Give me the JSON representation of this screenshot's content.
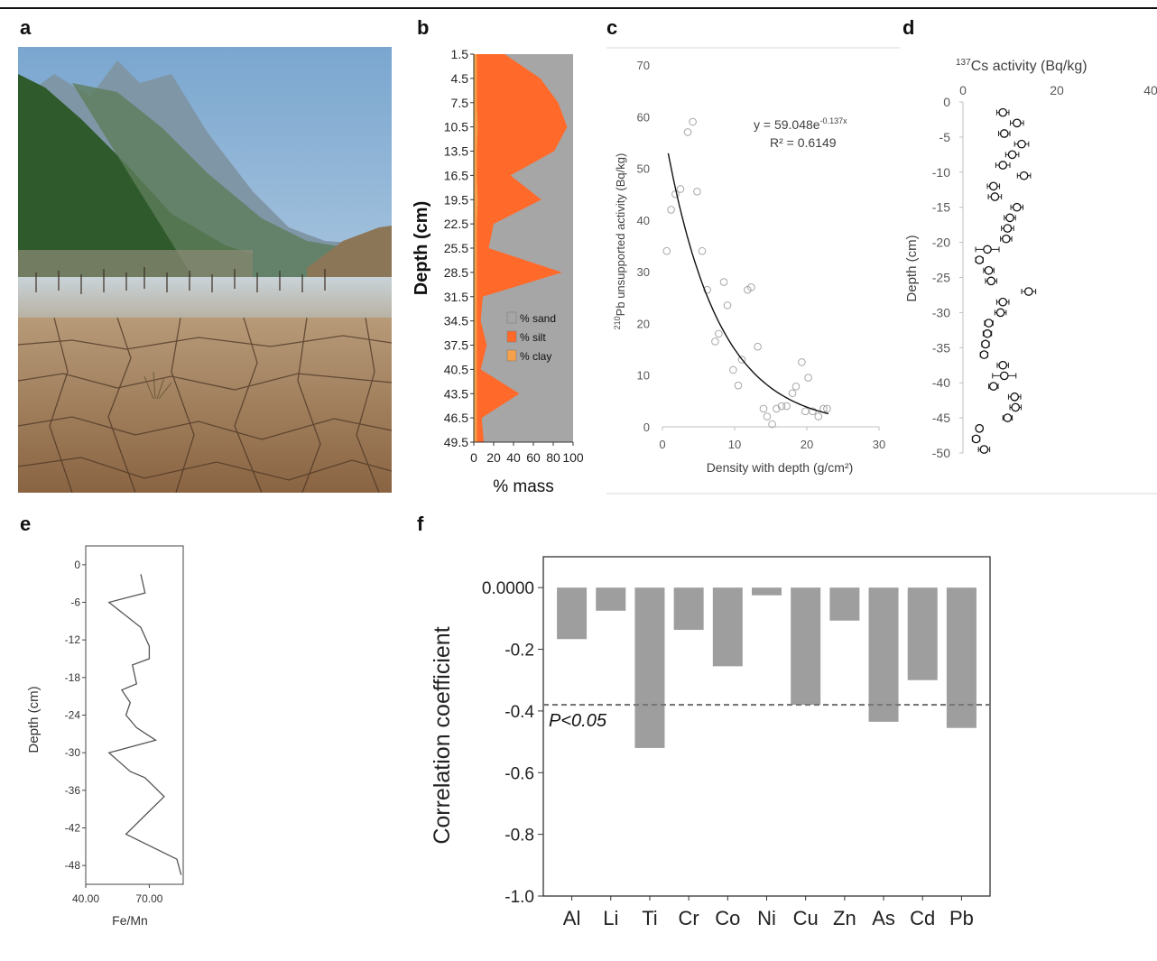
{
  "panels": {
    "a": "a",
    "b": "b",
    "c": "c",
    "d": "d",
    "e": "e",
    "f": "f"
  },
  "chart_data": [
    {
      "id": "b",
      "type": "area",
      "ylabel": "Depth (cm)",
      "xlabel": "% mass",
      "xticks": [
        "0",
        "20",
        "40",
        "60",
        "80",
        "100"
      ],
      "xlim": [
        0,
        100
      ],
      "depths": [
        1.5,
        4.5,
        7.5,
        10.5,
        13.5,
        16.5,
        19.5,
        22.5,
        25.5,
        28.5,
        31.5,
        34.5,
        37.5,
        40.5,
        43.5,
        46.5,
        49.5
      ],
      "depth_labels": [
        "1.5",
        "4.5",
        "7.5",
        "10.5",
        "13.5",
        "16.5",
        "19.5",
        "22.5",
        "25.5",
        "28.5",
        "31.5",
        "34.5",
        "37.5",
        "40.5",
        "43.5",
        "46.5",
        "49.5"
      ],
      "series": [
        {
          "name": "% clay",
          "color": "#f5a04a",
          "values": [
            3,
            3,
            3,
            4,
            3,
            3,
            4,
            3,
            3,
            3,
            3,
            3,
            3,
            3,
            3,
            3,
            3
          ]
        },
        {
          "name": "% silt",
          "color": "#ff6a2b",
          "values": [
            28,
            64,
            82,
            90,
            78,
            34,
            64,
            17,
            12,
            86,
            6,
            4,
            10,
            4,
            43,
            5,
            7
          ]
        },
        {
          "name": "% sand",
          "color": "#a6a6a6",
          "values": [
            69,
            33,
            15,
            6,
            19,
            63,
            32,
            80,
            85,
            11,
            91,
            93,
            87,
            93,
            54,
            92,
            90
          ]
        }
      ],
      "legend": [
        "% sand",
        "% silt",
        "% clay"
      ]
    },
    {
      "id": "c",
      "type": "scatter",
      "xlabel": "Density with depth (g/cm²)",
      "ylabel_sup": "210",
      "ylabel_rest": "Pb unsupported activity (Bq/kg)",
      "xlim": [
        0,
        30
      ],
      "ylim": [
        0,
        70
      ],
      "xticks": [
        "0",
        "10",
        "20",
        "30"
      ],
      "yticks": [
        "0",
        "10",
        "20",
        "30",
        "40",
        "50",
        "60",
        "70"
      ],
      "equation_base": "y = 59.048e",
      "equation_exp": "-0.137x",
      "r2": "R² = 0.6149",
      "fit": {
        "a": 59.048,
        "b": -0.137,
        "x_from": 0.8,
        "x_to": 23
      },
      "points": [
        [
          0.6,
          34
        ],
        [
          1.2,
          42
        ],
        [
          1.8,
          45
        ],
        [
          2.5,
          46
        ],
        [
          3.5,
          57
        ],
        [
          4.2,
          59
        ],
        [
          4.8,
          45.5
        ],
        [
          5.5,
          34
        ],
        [
          6.2,
          26.5
        ],
        [
          7.3,
          16.5
        ],
        [
          7.8,
          18
        ],
        [
          8.5,
          28
        ],
        [
          9,
          23.5
        ],
        [
          9.8,
          11
        ],
        [
          10.5,
          8
        ],
        [
          11,
          13
        ],
        [
          11.8,
          26.5
        ],
        [
          12.3,
          27
        ],
        [
          13.2,
          15.5
        ],
        [
          14,
          3.5
        ],
        [
          14.5,
          2
        ],
        [
          15.2,
          0.5
        ],
        [
          15.8,
          3.5
        ],
        [
          16.5,
          4
        ],
        [
          17.2,
          4
        ],
        [
          18,
          6.5
        ],
        [
          18.5,
          7.8
        ],
        [
          19.3,
          12.5
        ],
        [
          19.8,
          3
        ],
        [
          20.2,
          9.5
        ],
        [
          20.8,
          3
        ],
        [
          21.6,
          2
        ],
        [
          22.3,
          3.5
        ],
        [
          22.8,
          3.5
        ]
      ]
    },
    {
      "id": "d",
      "type": "scatter",
      "xlabel_sup": "137",
      "xlabel_rest": "Cs activity (Bq/kg)",
      "ylabel": "Depth (cm)",
      "xlim": [
        0,
        40
      ],
      "ylim": [
        -50,
        0
      ],
      "xticks": [
        "0",
        "20",
        "40"
      ],
      "yticks": [
        "0",
        "-5",
        "-10",
        "-15",
        "-20",
        "-25",
        "-30",
        "-35",
        "-40",
        "-45",
        "-50"
      ],
      "points": [
        [
          8.5,
          -1.5,
          1.3
        ],
        [
          11.5,
          -3,
          1.4
        ],
        [
          8.8,
          -4.5,
          1.2
        ],
        [
          12.5,
          -6,
          1.5
        ],
        [
          10.5,
          -7.5,
          1.4
        ],
        [
          8.5,
          -9,
          1.5
        ],
        [
          13,
          -10.5,
          1.4
        ],
        [
          6.5,
          -12,
          1.3
        ],
        [
          6.8,
          -13.5,
          1.4
        ],
        [
          11.5,
          -15,
          1.3
        ],
        [
          10,
          -16.5,
          1.2
        ],
        [
          9.5,
          -18,
          1.3
        ],
        [
          9.2,
          -19.5,
          1.2
        ],
        [
          5.2,
          -21,
          2.5
        ],
        [
          3.5,
          -22.5,
          0.8
        ],
        [
          5.5,
          -24,
          1.1
        ],
        [
          6,
          -25.5,
          1.2
        ],
        [
          14,
          -27,
          1.5
        ],
        [
          8.5,
          -28.5,
          1.3
        ],
        [
          8,
          -30,
          1.2
        ],
        [
          5.5,
          -31.5,
          0.9
        ],
        [
          5.2,
          -33,
          0.9
        ],
        [
          4.8,
          -34.5,
          0.8
        ],
        [
          4.5,
          -36,
          0.8
        ],
        [
          8.5,
          -37.5,
          1.2
        ],
        [
          8.8,
          -39,
          2.5
        ],
        [
          6.5,
          -40.5,
          1.0
        ],
        [
          11,
          -42,
          1.3
        ],
        [
          11.2,
          -43.5,
          1.2
        ],
        [
          9.5,
          -45,
          1.0
        ],
        [
          3.5,
          -46.5,
          0.7
        ],
        [
          2.8,
          -48,
          0.8
        ],
        [
          4.5,
          -49.5,
          1.2
        ]
      ]
    },
    {
      "id": "e",
      "type": "line",
      "xlabel": "Fe/Mn",
      "ylabel": "Depth (cm)",
      "xlim": [
        40,
        86
      ],
      "ylim": [
        -51,
        3
      ],
      "xticks": [
        "40.00",
        "70.00"
      ],
      "xtick_values": [
        40,
        70
      ],
      "yticks": [
        "0",
        "-6",
        "-12",
        "-18",
        "-24",
        "-30",
        "-36",
        "-42",
        "-48"
      ],
      "ytick_values": [
        0,
        -6,
        -12,
        -18,
        -24,
        -30,
        -36,
        -42,
        -48
      ],
      "points": [
        [
          66,
          -1.5
        ],
        [
          68,
          -4.5
        ],
        [
          51,
          -6
        ],
        [
          66,
          -10
        ],
        [
          70,
          -13
        ],
        [
          70,
          -15
        ],
        [
          62,
          -16
        ],
        [
          64,
          -19
        ],
        [
          57,
          -20
        ],
        [
          61,
          -22
        ],
        [
          59,
          -24
        ],
        [
          64,
          -26
        ],
        [
          73,
          -28
        ],
        [
          51,
          -30
        ],
        [
          61,
          -33
        ],
        [
          68,
          -34
        ],
        [
          77,
          -37
        ],
        [
          68,
          -40
        ],
        [
          59,
          -43
        ],
        [
          83,
          -47
        ],
        [
          85,
          -49.5
        ]
      ]
    },
    {
      "id": "f",
      "type": "bar",
      "ylabel": "Correlation coefficient",
      "ylim": [
        -1.0,
        0.1
      ],
      "yticks": [
        "0.0000",
        "-0.2",
        "-0.4",
        "-0.6",
        "-0.8",
        "-1.0"
      ],
      "ytick_values": [
        0,
        -0.2,
        -0.4,
        -0.6,
        -0.8,
        -1.0
      ],
      "categories": [
        "Al",
        "Li",
        "Ti",
        "Cr",
        "Co",
        "Ni",
        "Cu",
        "Zn",
        "As",
        "Cd",
        "Pb"
      ],
      "values": [
        -0.167,
        -0.075,
        -0.52,
        -0.137,
        -0.255,
        -0.025,
        -0.38,
        -0.107,
        -0.435,
        -0.3,
        -0.455
      ],
      "threshold": -0.38,
      "threshold_label": "P<0.05",
      "bar_color": "#9e9e9e"
    }
  ],
  "photo": {
    "description_alt": "Dry reservoir bed"
  }
}
